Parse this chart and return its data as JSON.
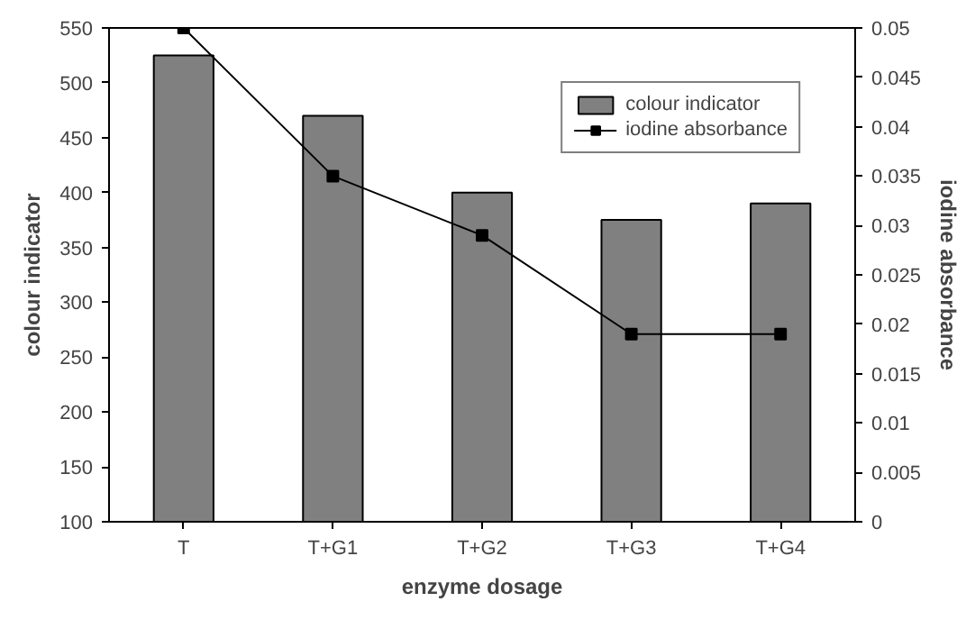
{
  "chart_data": {
    "type": "bar",
    "xlabel": "enzyme dosage",
    "ylabel": "colour indicator",
    "y2label": "iodine absorbance",
    "categories": [
      "T",
      "T+G1",
      "T+G2",
      "T+G3",
      "T+G4"
    ],
    "series": [
      {
        "name": "colour indicator",
        "color": "#808080",
        "values": [
          525,
          470,
          400,
          375,
          390
        ]
      },
      {
        "name": "iodine absorbance",
        "type": "line",
        "axis": "y2",
        "color": "#000000",
        "marker": "square",
        "values": [
          0.05,
          0.035,
          0.029,
          0.019,
          0.019
        ]
      }
    ],
    "ylim": [
      100,
      550
    ],
    "yticks": [
      100,
      150,
      200,
      250,
      300,
      350,
      400,
      450,
      500,
      550
    ],
    "y2lim": [
      0,
      0.05
    ],
    "y2ticks": [
      0,
      0.005,
      0.01,
      0.015,
      0.02,
      0.025,
      0.03,
      0.035,
      0.04,
      0.045,
      0.05
    ],
    "grid": false,
    "legend": "top right"
  }
}
